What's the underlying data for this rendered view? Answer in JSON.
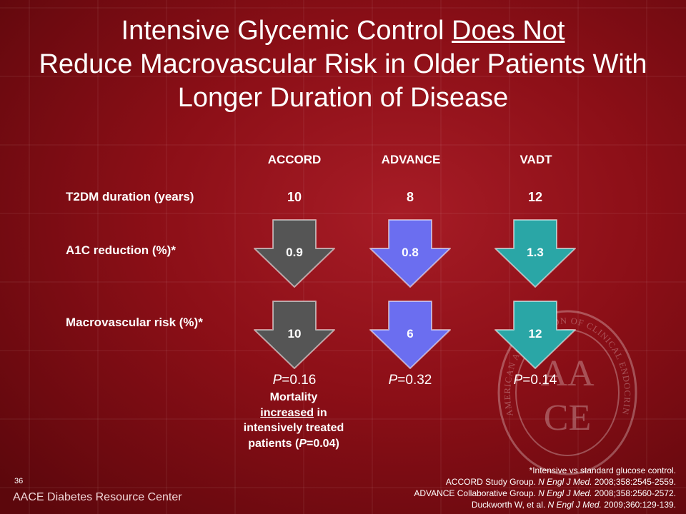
{
  "title": {
    "part1": "Intensive Glycemic Control ",
    "emphasis": "Does Not",
    "part2": "Reduce Macrovascular Risk in Older Patients With Longer Duration of Disease"
  },
  "columns": [
    "ACCORD",
    "ADVANCE",
    "VADT"
  ],
  "rows": {
    "duration": {
      "label": "T2DM duration (years)",
      "values": [
        "10",
        "8",
        "12"
      ]
    },
    "a1c": {
      "label": "A1C reduction (%)*",
      "values": [
        "0.9",
        "0.8",
        "1.3"
      ]
    },
    "macro": {
      "label": "Macrovascular risk (%)*",
      "values": [
        "10",
        "6",
        "12"
      ]
    }
  },
  "arrow_colors": [
    "#555555",
    "#6b6ef0",
    "#2aa6a6"
  ],
  "p_values": [
    {
      "label": "P",
      "value": "=0.16"
    },
    {
      "label": "P",
      "value": "=0.32"
    },
    {
      "label": "P",
      "value": "=0.14"
    }
  ],
  "mortality_note": {
    "line1": "Mortality",
    "increased": "increased",
    "rest": " in intensively treated patients (",
    "p": "P",
    "pval": "=0.04)"
  },
  "slide_number": "36",
  "footer_brand": "AACE Diabetes Resource Center",
  "seal_text": "AMERICAN ASSOCIATION OF CLINICAL ENDOCRINOLOGISTS",
  "seal_letters": [
    "AA",
    "CE"
  ],
  "notes": {
    "intro": "*Intensive vs standard glucose control.",
    "refs": [
      {
        "pre": "ACCORD Study Group. ",
        "journal": "N Engl J Med.",
        "post": " 2008;358:2545-2559."
      },
      {
        "pre": "ADVANCE Collaborative Group. ",
        "journal": "N Engl J Med.",
        "post": " 2008;358:2560-2572."
      },
      {
        "pre": "Duckworth W, et al. ",
        "journal": "N Engl J Med.",
        "post": " 2009;360:129-139."
      }
    ]
  }
}
